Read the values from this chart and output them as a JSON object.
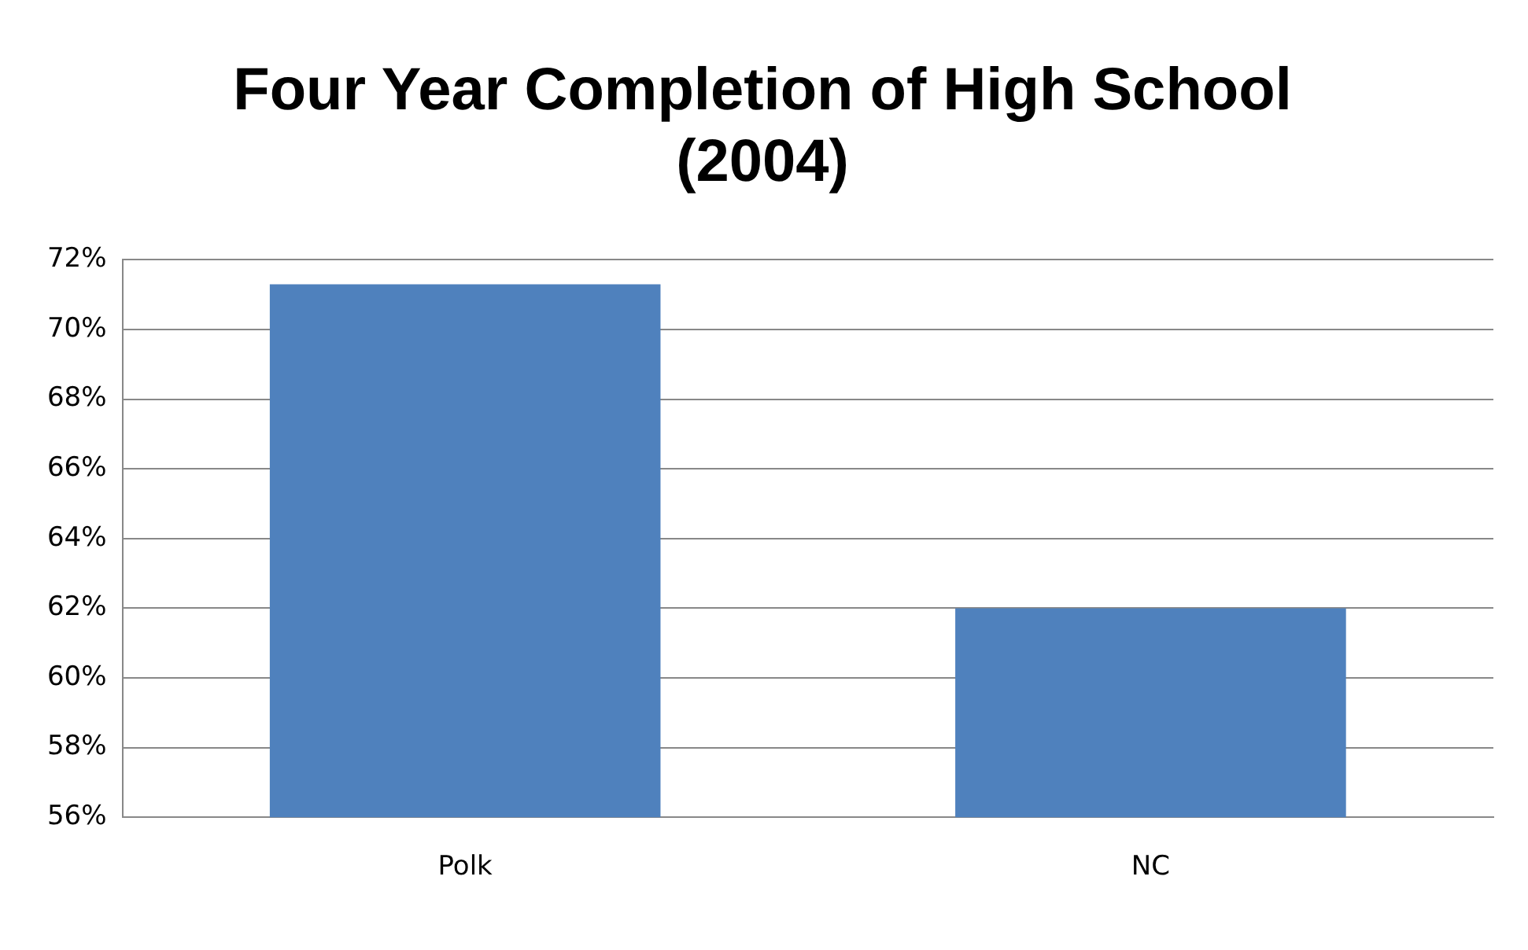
{
  "chart_data": {
    "type": "bar",
    "title": [
      "Four Year Completion of High School",
      "(2004)"
    ],
    "categories": [
      "Polk",
      "NC"
    ],
    "series": [
      {
        "color": "#4f81bd",
        "values": [
          71.3,
          62.0
        ]
      }
    ],
    "ylim": [
      56,
      72
    ],
    "yticks": [
      {
        "value": 56,
        "label": "56%"
      },
      {
        "value": 58,
        "label": "58%"
      },
      {
        "value": 60,
        "label": "60%"
      },
      {
        "value": 62,
        "label": "62%"
      },
      {
        "value": 64,
        "label": "64%"
      },
      {
        "value": 66,
        "label": "66%"
      },
      {
        "value": 68,
        "label": "68%"
      },
      {
        "value": 70,
        "label": "70%"
      },
      {
        "value": 72,
        "label": "72%"
      }
    ],
    "grid": "y",
    "legend": false
  }
}
